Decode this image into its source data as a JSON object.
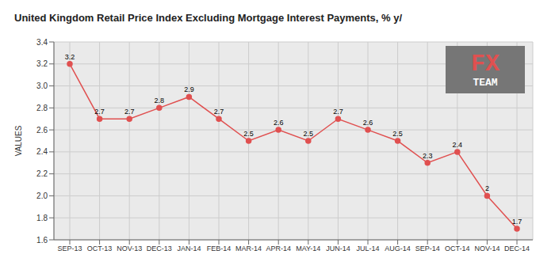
{
  "chart_data": {
    "type": "line",
    "title": "United Kingdom Retail Price Index Excluding Mortgage Interest Payments, % y/",
    "y_label": "VALUES",
    "categories": [
      "SEP-13",
      "OCT-13",
      "NOV-13",
      "DEC-13",
      "JAN-14",
      "FEB-14",
      "MAR-14",
      "APR-14",
      "MAY-14",
      "JUN-14",
      "JUL-14",
      "AUG-14",
      "SEP-14",
      "OCT-14",
      "NOV-14",
      "DEC-14"
    ],
    "values": [
      3.2,
      2.7,
      2.7,
      2.8,
      2.9,
      2.7,
      2.5,
      2.6,
      2.5,
      2.7,
      2.6,
      2.5,
      2.3,
      2.4,
      2.0,
      1.7
    ],
    "color": "#e05050",
    "marker": "circle",
    "ylim": [
      1.6,
      3.4
    ],
    "yticks": [
      1.6,
      1.8,
      {
        "value": 2.0,
        "label": "2.0"
      },
      2.2,
      2.4,
      2.6,
      2.8,
      {
        "value": 3.0,
        "label": "3.0"
      },
      3.2,
      3.4
    ],
    "grid": true,
    "data_labels": true,
    "annotations": [
      "FX",
      "TEAM"
    ]
  }
}
